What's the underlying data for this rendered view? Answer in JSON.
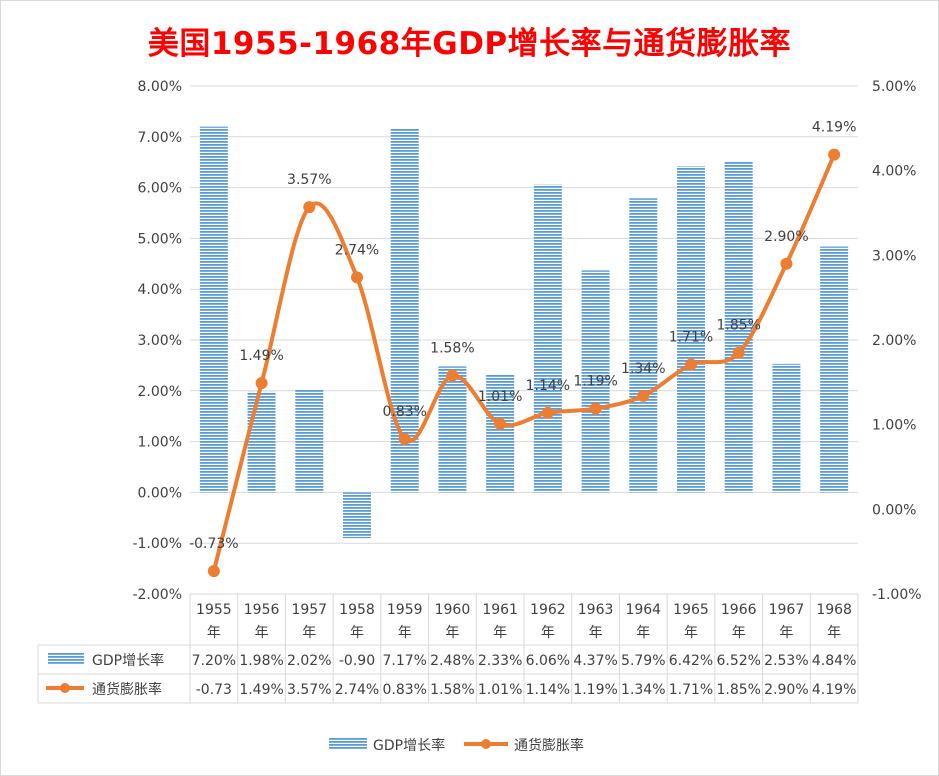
{
  "chart_data": {
    "type": "bar+line",
    "title": "美国1955-1968年GDP增长率与通货膨胀率",
    "categories": [
      "1955年",
      "1956年",
      "1957年",
      "1958年",
      "1959年",
      "1960年",
      "1961年",
      "1962年",
      "1963年",
      "1964年",
      "1965年",
      "1966年",
      "1967年",
      "1968年"
    ],
    "category_year": [
      "1955",
      "1956",
      "1957",
      "1958",
      "1959",
      "1960",
      "1961",
      "1962",
      "1963",
      "1964",
      "1965",
      "1966",
      "1967",
      "1968"
    ],
    "category_suffix": "年",
    "series": [
      {
        "name": "GDP增长率",
        "kind": "bar",
        "axis": "left",
        "values": [
          7.2,
          1.98,
          2.02,
          -0.9,
          7.17,
          2.48,
          2.33,
          6.06,
          4.37,
          5.79,
          6.42,
          6.52,
          2.53,
          4.84
        ],
        "table_labels": [
          "7.20%",
          "1.98%",
          "2.02%",
          "-0.90",
          "7.17%",
          "2.48%",
          "2.33%",
          "6.06%",
          "4.37%",
          "5.79%",
          "6.42%",
          "6.52%",
          "2.53%",
          "4.84%"
        ],
        "color": "#5b9bd5"
      },
      {
        "name": "通货膨胀率",
        "kind": "line",
        "axis": "right",
        "values": [
          -0.73,
          1.49,
          3.57,
          2.74,
          0.83,
          1.58,
          1.01,
          1.14,
          1.19,
          1.34,
          1.71,
          1.85,
          2.9,
          4.19
        ],
        "point_labels": [
          "-0.73%",
          "1.49%",
          "3.57%",
          "2.74%",
          "0.83%",
          "1.58%",
          "1.01%",
          "1.14%",
          "1.19%",
          "1.34%",
          "1.71%",
          "1.85%",
          "2.90%",
          "4.19%"
        ],
        "table_labels": [
          "-0.73",
          "1.49%",
          "3.57%",
          "2.74%",
          "0.83%",
          "1.58%",
          "1.01%",
          "1.14%",
          "1.19%",
          "1.34%",
          "1.71%",
          "1.85%",
          "2.90%",
          "4.19%"
        ],
        "color": "#ed7d31"
      }
    ],
    "y_left": {
      "min": -2,
      "max": 8,
      "step": 1,
      "tick_labels": [
        "-2.00%",
        "-1.00%",
        "0.00%",
        "1.00%",
        "2.00%",
        "3.00%",
        "4.00%",
        "5.00%",
        "6.00%",
        "7.00%",
        "8.00%"
      ]
    },
    "y_right": {
      "min": -1,
      "max": 5,
      "step": 1,
      "tick_labels": [
        "-1.00%",
        "0.00%",
        "1.00%",
        "2.00%",
        "3.00%",
        "4.00%",
        "5.00%"
      ]
    },
    "grid": true,
    "legend": "bottom",
    "data_table": true
  }
}
